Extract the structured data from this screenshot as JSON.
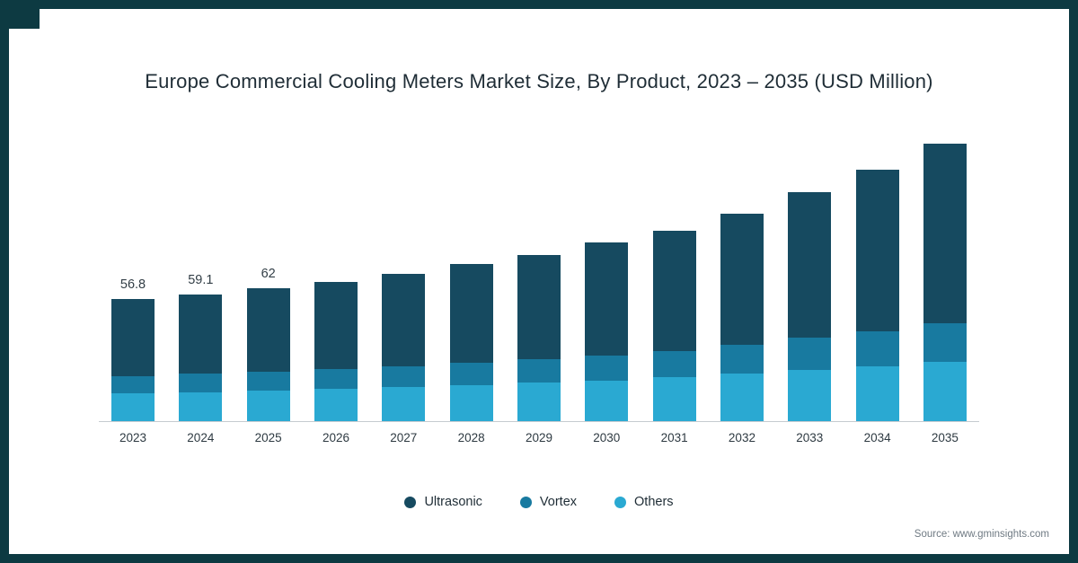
{
  "frame": {
    "border_color": "#0d3a42"
  },
  "chart_data": {
    "type": "bar",
    "stacked": true,
    "title": "Europe Commercial Cooling Meters Market Size, By Product, 2023 – 2035 (USD Million)",
    "categories": [
      "2023",
      "2024",
      "2025",
      "2026",
      "2027",
      "2028",
      "2029",
      "2030",
      "2031",
      "2032",
      "2033",
      "2034",
      "2035"
    ],
    "series": [
      {
        "name": "Ultrasonic",
        "color": "#164a60",
        "values": [
          35.8,
          37.1,
          38.9,
          40.8,
          43.0,
          45.9,
          48.7,
          52.3,
          55.7,
          61.0,
          67.5,
          75.0,
          83.5
        ]
      },
      {
        "name": "Vortex",
        "color": "#187aa0",
        "values": [
          8.0,
          8.4,
          8.8,
          9.2,
          9.7,
          10.3,
          11.0,
          11.7,
          12.5,
          13.5,
          15.0,
          16.5,
          18.0
        ]
      },
      {
        "name": "Others",
        "color": "#2aa9d2",
        "values": [
          13.0,
          13.6,
          14.3,
          15.0,
          15.8,
          16.8,
          17.8,
          19.0,
          20.3,
          22.0,
          24.0,
          25.5,
          27.5
        ]
      }
    ],
    "totals": [
      56.8,
      59.1,
      62,
      65,
      68.5,
      73,
      77.5,
      83,
      88.5,
      96.5,
      106.5,
      117,
      129
    ],
    "bar_labels": [
      "56.8",
      "59.1",
      "62",
      "",
      "",
      "",
      "",
      "",
      "",
      "",
      "",
      "",
      ""
    ],
    "xlabel": "",
    "ylabel": "",
    "ylim": [
      0,
      140
    ],
    "grid": false,
    "legend_position": "bottom"
  },
  "source": {
    "text": "Source: www.gminsights.com"
  }
}
